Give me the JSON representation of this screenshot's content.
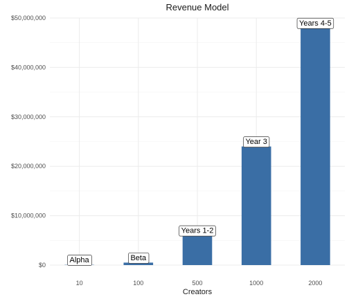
{
  "chart_data": {
    "type": "bar",
    "title": "Revenue Model",
    "xlabel": "Creators",
    "ylabel": "",
    "categories": [
      "10",
      "100",
      "500",
      "1000",
      "2000"
    ],
    "values": [
      50000,
      500000,
      6000000,
      24000000,
      48000000
    ],
    "bar_labels": [
      "Alpha",
      "Beta",
      "Years 1-2",
      "Year 3",
      "Years 4-5"
    ],
    "ylim": [
      0,
      50000000
    ],
    "yticks": [
      0,
      10000000,
      20000000,
      30000000,
      40000000,
      50000000
    ],
    "ytick_labels": [
      "$0",
      "$10,000,000",
      "$20,000,000",
      "$30,000,000",
      "$40,000,000",
      "$50,000,000"
    ],
    "grid": true,
    "bar_color": "#3a6ea5"
  }
}
